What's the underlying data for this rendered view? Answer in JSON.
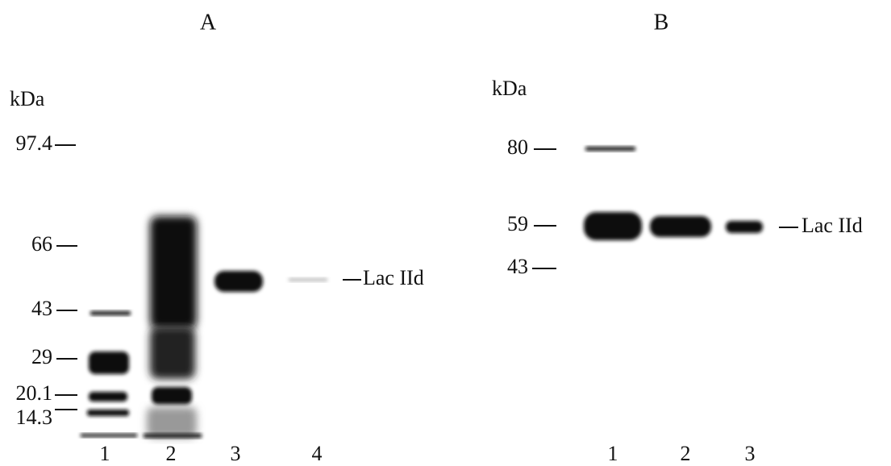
{
  "panels": [
    {
      "label": "A",
      "unit": "kDa",
      "markers": [
        "97.4",
        "66",
        "43",
        "29",
        "20.1",
        "14.3"
      ],
      "lanes": [
        "1",
        "2",
        "3",
        "4"
      ],
      "band_label": "Lac IId"
    },
    {
      "label": "B",
      "unit": "kDa",
      "markers": [
        "80",
        "59",
        "43"
      ],
      "lanes": [
        "1",
        "2",
        "3"
      ],
      "band_label": "Lac IId"
    }
  ]
}
